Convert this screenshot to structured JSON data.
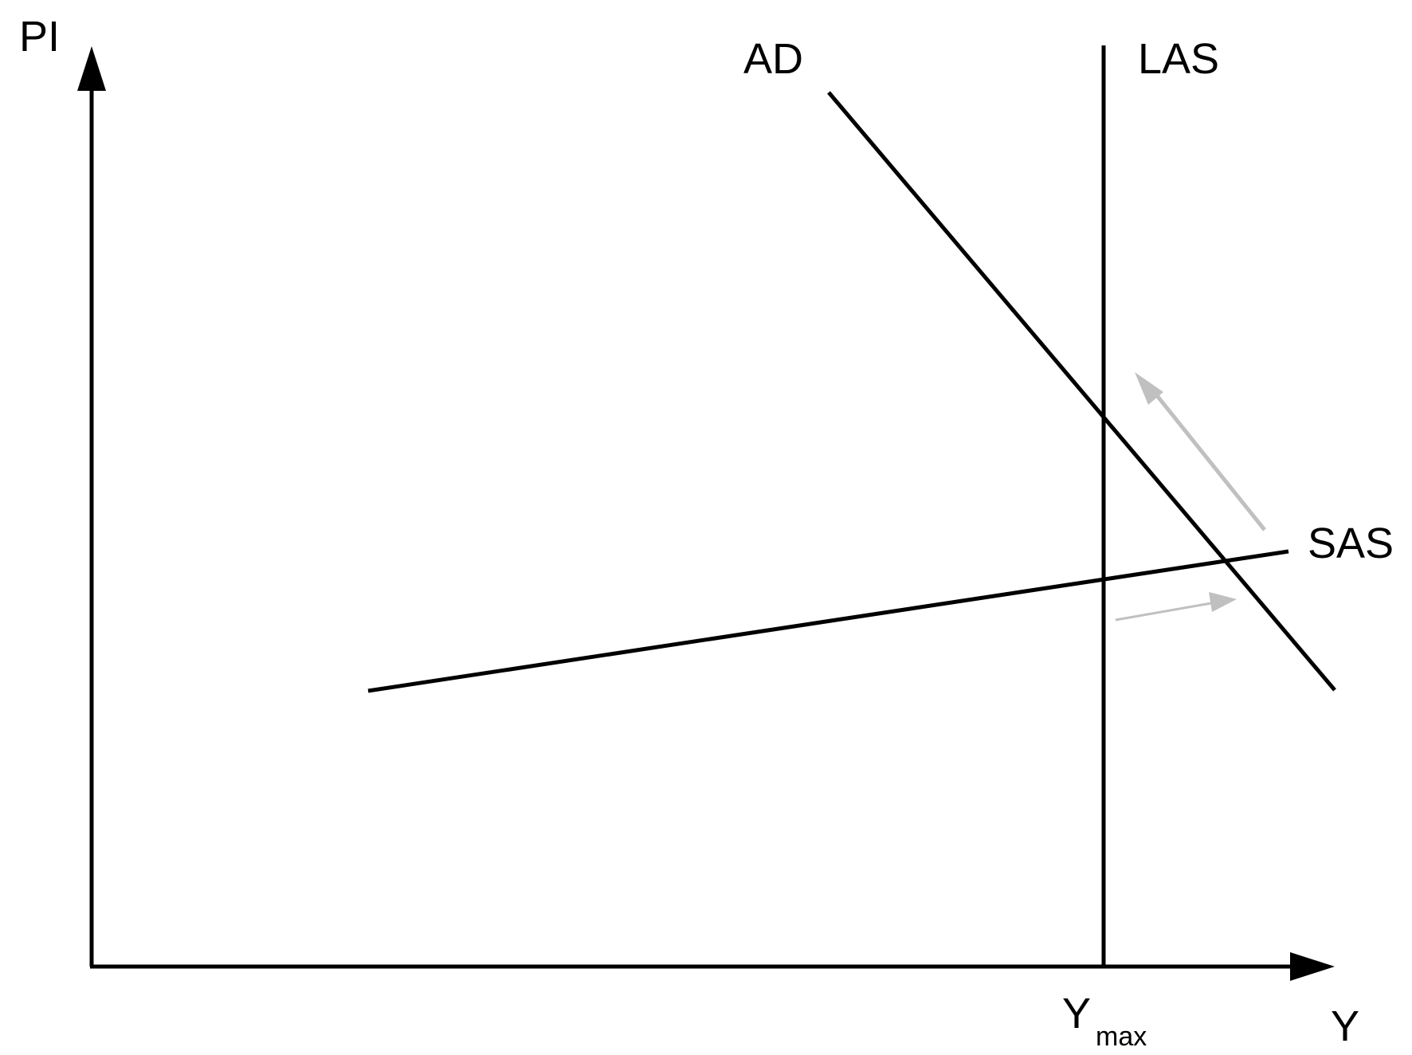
{
  "axes": {
    "y_label": "PI",
    "x_label": "Y"
  },
  "curves": {
    "ad_label": "AD",
    "las_label": "LAS",
    "sas_label": "SAS"
  },
  "tick": {
    "main": "Y",
    "subscript": "max"
  },
  "colors": {
    "line": "#000000",
    "shift_arrow": "#c0c0c0",
    "background": "#ffffff"
  }
}
